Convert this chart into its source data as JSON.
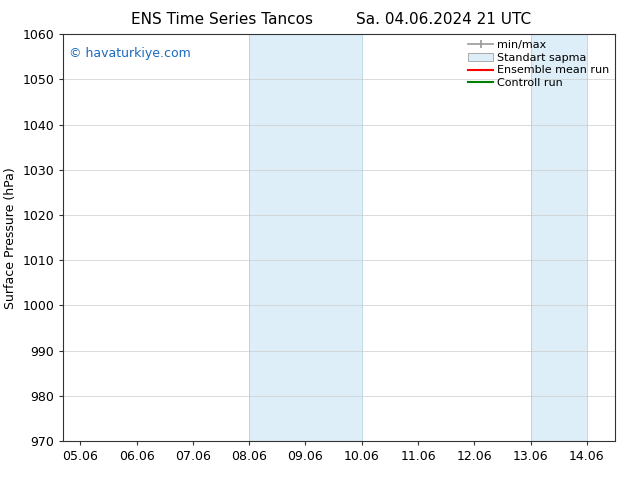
{
  "title_left": "ENS Time Series Tancos",
  "title_right": "Sa. 04.06.2024 21 UTC",
  "ylabel": "Surface Pressure (hPa)",
  "ylim": [
    970,
    1060
  ],
  "yticks": [
    970,
    980,
    990,
    1000,
    1010,
    1020,
    1030,
    1040,
    1050,
    1060
  ],
  "x_tick_labels": [
    "05.06",
    "06.06",
    "07.06",
    "08.06",
    "09.06",
    "10.06",
    "11.06",
    "12.06",
    "13.06",
    "14.06"
  ],
  "x_tick_days": [
    5,
    6,
    7,
    8,
    9,
    10,
    11,
    12,
    13,
    14
  ],
  "x_start_day": 5,
  "x_end_day": 14,
  "band1_start": 8,
  "band1_end": 10,
  "band2_start": 13,
  "band2_end": 14,
  "shade_color": "#ddeef8",
  "shade_edge_color": "#aaccdd",
  "watermark_text": "© havaturkiye.com",
  "watermark_color": "#1a6abf",
  "bg_color": "#ffffff",
  "spine_color": "#333333",
  "grid_color": "#cccccc",
  "title_fontsize": 11,
  "axis_fontsize": 9,
  "legend_fontsize": 8,
  "minmax_color": "#999999",
  "stddev_facecolor": "#ddeef8",
  "stddev_edgecolor": "#aaaaaa",
  "ens_color": "red",
  "ctrl_color": "green"
}
